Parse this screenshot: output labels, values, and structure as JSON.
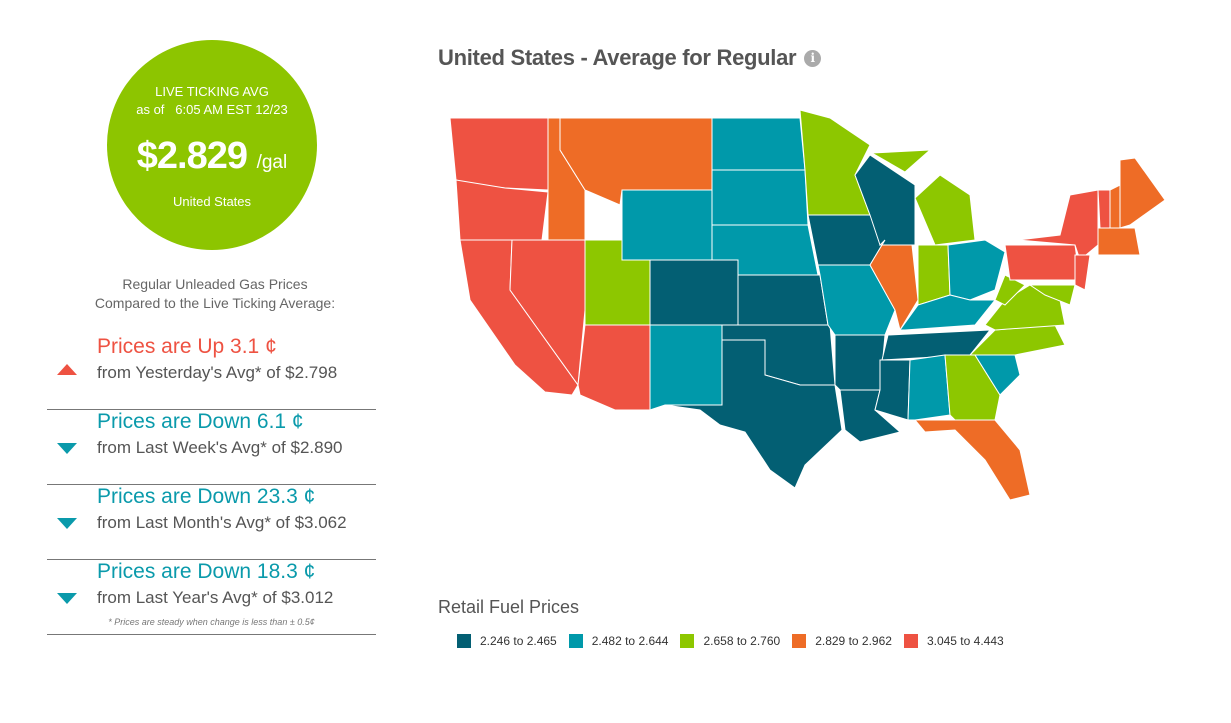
{
  "live_avg": {
    "label": "LIVE TICKING AVG",
    "as_of": "as of   6:05 AM EST 12/23",
    "price": "$2.829",
    "unit": "/gal",
    "region": "United States"
  },
  "comparison": {
    "heading_line1": "Regular Unleaded Gas Prices",
    "heading_line2": "Compared to the Live Ticking Average:",
    "items": [
      {
        "direction": "up",
        "headline": "Prices are Up 3.1 ¢",
        "detail": "from Yesterday's Avg* of $2.798"
      },
      {
        "direction": "down",
        "headline": "Prices are Down 6.1 ¢",
        "detail": "from Last Week's Avg* of $2.890"
      },
      {
        "direction": "down",
        "headline": "Prices are Down 23.3 ¢",
        "detail": "from Last Month's Avg* of $3.062"
      },
      {
        "direction": "down",
        "headline": "Prices are Down 18.3 ¢",
        "detail": "from Last Year's Avg* of $3.012"
      }
    ],
    "footnote": "* Prices are steady when change is less than ± 0.5¢"
  },
  "map": {
    "title": "United States - Average for Regular",
    "info_icon": "info-icon",
    "legend_title": "Retail Fuel Prices",
    "legend": [
      {
        "range": "2.246 to 2.465",
        "color": "#035f73"
      },
      {
        "range": "2.482 to 2.644",
        "color": "#0099aa"
      },
      {
        "range": "2.658 to 2.760",
        "color": "#8dc700"
      },
      {
        "range": "2.829 to 2.962",
        "color": "#ee6c26"
      },
      {
        "range": "3.045 to 4.443",
        "color": "#ee5242"
      }
    ],
    "state_tiers": {
      "WA": 4,
      "OR": 4,
      "CA": 4,
      "NV": 4,
      "AZ": 4,
      "ID": 3,
      "MT": 3,
      "WY": 1,
      "UT": 2,
      "CO": 0,
      "NM": 1,
      "ND": 1,
      "SD": 1,
      "NE": 1,
      "KS": 0,
      "OK": 0,
      "TX": 0,
      "MN": 2,
      "IA": 0,
      "MO": 1,
      "AR": 0,
      "LA": 0,
      "WI": 0,
      "IL": 3,
      "MI": 2,
      "MIU": 2,
      "IN": 2,
      "OH": 1,
      "KY": 1,
      "TN": 0,
      "MS": 0,
      "AL": 1,
      "GA": 2,
      "FL": 3,
      "SC": 1,
      "NC": 2,
      "VA": 2,
      "WV": 2,
      "PA": 4,
      "NY": 4,
      "NJ": 4,
      "MD": 2,
      "VT": 4,
      "NH": 3,
      "ME": 3,
      "MA": 3
    }
  }
}
